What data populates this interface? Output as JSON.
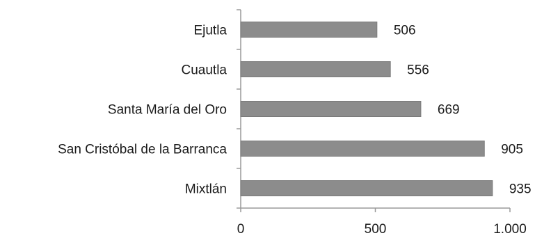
{
  "chart_data": {
    "type": "bar",
    "orientation": "horizontal",
    "categories": [
      "Ejutla",
      "Cuautla",
      "Santa María del Oro",
      "San Cristóbal de la Barranca",
      "Mixtlán"
    ],
    "values": [
      506,
      556,
      669,
      905,
      935
    ],
    "value_labels": [
      "506",
      "556",
      "669",
      "905",
      "935"
    ],
    "xlim": [
      0,
      1000
    ],
    "xticks": [
      0,
      500,
      1000
    ],
    "xtick_labels": [
      "0",
      "500",
      "1.000"
    ],
    "title": "",
    "xlabel": "",
    "ylabel": "",
    "grid": false,
    "legend": "none",
    "colors": {
      "bar": "#8c8c8c",
      "bar_edge": "#7a7a7a",
      "axis": "#9a9a9a"
    }
  }
}
